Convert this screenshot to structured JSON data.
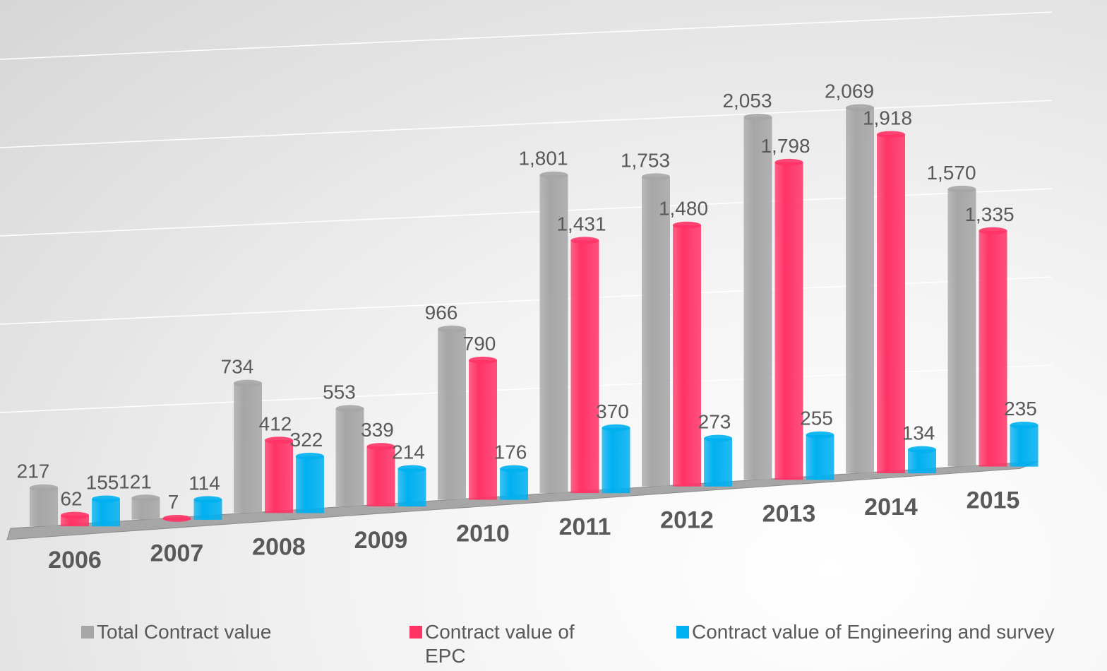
{
  "chart_data": {
    "type": "bar3d",
    "categories": [
      "2006",
      "2007",
      "2008",
      "2009",
      "2010",
      "2011",
      "2012",
      "2013",
      "2014",
      "2015"
    ],
    "series": [
      {
        "name": "Total Contract value",
        "color": "#a6a6a6",
        "values": [
          217,
          121,
          734,
          553,
          966,
          1801,
          1753,
          2053,
          2069,
          1570
        ],
        "value_labels": [
          "217",
          "121",
          "734",
          "553",
          "966",
          "1,801",
          "1,753",
          "2,053",
          "2,069",
          "1,570"
        ]
      },
      {
        "name": "Contract value of EPC",
        "color": "#ff3366",
        "values": [
          62,
          7,
          412,
          339,
          790,
          1431,
          1480,
          1798,
          1918,
          1335
        ],
        "value_labels": [
          "62",
          "7",
          "412",
          "339",
          "790",
          "1,431",
          "1,480",
          "1,798",
          "1,918",
          "1,335"
        ]
      },
      {
        "name": "Contract value of Engineering and survey",
        "color": "#00b0f0",
        "values": [
          155,
          114,
          322,
          214,
          176,
          370,
          273,
          255,
          134,
          235
        ],
        "value_labels": [
          "155",
          "114",
          "322",
          "214",
          "176",
          "370",
          "273",
          "255",
          "134",
          "235"
        ]
      }
    ],
    "ylim": [
      0,
      2500
    ],
    "yticks": [
      0,
      500,
      1000,
      1500,
      2000,
      2500
    ],
    "grid": true
  }
}
